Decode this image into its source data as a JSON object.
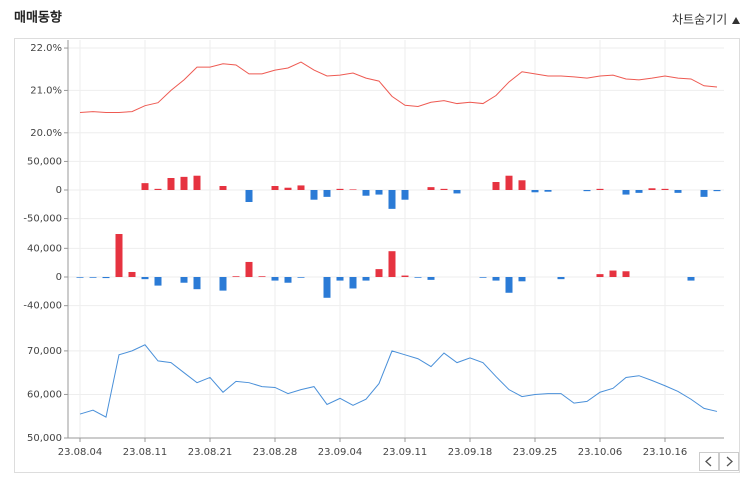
{
  "header": {
    "title": "매매동향",
    "toggle": "차트숨기기"
  },
  "chart_data": [
    {
      "type": "line",
      "color": "#ee5a52",
      "ylim": [
        19.83,
        22.19
      ],
      "yticks": [
        {
          "value": 20.0,
          "label": "20.0%"
        },
        {
          "value": 21.0,
          "label": "21.0%"
        },
        {
          "value": 22.0,
          "label": "22.0%"
        }
      ],
      "grid": true,
      "values": [
        20.48,
        20.5,
        20.48,
        20.48,
        20.5,
        20.64,
        20.71,
        21.0,
        21.25,
        21.55,
        21.55,
        21.63,
        21.6,
        21.39,
        21.39,
        21.48,
        21.53,
        21.67,
        21.48,
        21.34,
        21.36,
        21.41,
        21.29,
        21.22,
        20.86,
        20.65,
        20.62,
        20.72,
        20.76,
        20.69,
        20.72,
        20.69,
        20.88,
        21.2,
        21.44,
        21.39,
        21.34,
        21.34,
        21.32,
        21.29,
        21.34,
        21.36,
        21.27,
        21.25,
        21.29,
        21.34,
        21.29,
        21.27,
        21.11,
        21.08
      ]
    },
    {
      "type": "bar",
      "positive_color": "#e63340",
      "negative_color": "#2b7bd6",
      "ylim": [
        -70000,
        70000
      ],
      "yticks": [
        {
          "value": -50000,
          "label": "-50,000"
        },
        0,
        {
          "value": 50000,
          "label": "50,000"
        }
      ],
      "grid": true,
      "values": [
        0,
        0,
        0,
        0,
        0,
        12000,
        2000,
        21000,
        23000,
        25000,
        0,
        7000,
        0,
        -21000,
        0,
        7000,
        4000,
        8000,
        -17000,
        -12000,
        2000,
        1000,
        -10000,
        -8000,
        -33000,
        -17000,
        0,
        5000,
        2000,
        -6000,
        0,
        0,
        14000,
        25000,
        17000,
        -4000,
        -3000,
        0,
        0,
        -2000,
        2000,
        0,
        -8000,
        -5000,
        3000,
        2000,
        -5000,
        0,
        -12000,
        -2000
      ]
    },
    {
      "type": "bar",
      "positive_color": "#e63340",
      "negative_color": "#2b7bd6",
      "ylim": [
        -60000,
        60000
      ],
      "yticks": [
        {
          "value": -40000,
          "label": "-40,000"
        },
        0,
        {
          "value": 40000,
          "label": "40,000"
        }
      ],
      "grid": true,
      "values": [
        -1000,
        -1000,
        -1500,
        60000,
        7000,
        -3000,
        -12000,
        0,
        -8000,
        -17000,
        0,
        -19000,
        1000,
        21000,
        1000,
        -5000,
        -8000,
        -1000,
        0,
        -29000,
        -5000,
        -16000,
        -5000,
        11000,
        36000,
        2000,
        -1000,
        -4000,
        0,
        0,
        0,
        -1000,
        -5000,
        -22000,
        -6000,
        0,
        0,
        -3000,
        0,
        0,
        4000,
        9000,
        8000,
        0,
        0,
        0,
        0,
        -5000,
        0,
        0
      ]
    },
    {
      "type": "line",
      "color": "#4a90d9",
      "ylim": [
        50000,
        72500
      ],
      "yticks": [
        {
          "value": 50000,
          "label": "50,000"
        },
        {
          "value": 60000,
          "label": "60,000"
        },
        {
          "value": 70000,
          "label": "70,000"
        }
      ],
      "grid": true,
      "categories": [
        "23.08.04",
        null,
        null,
        null,
        null,
        "23.08.11",
        null,
        null,
        null,
        null,
        "23.08.21",
        null,
        null,
        null,
        null,
        "23.08.28",
        null,
        null,
        null,
        null,
        "23.09.04",
        null,
        null,
        null,
        null,
        "23.09.11",
        null,
        null,
        null,
        null,
        "23.09.18",
        null,
        null,
        null,
        null,
        "23.09.25",
        null,
        null,
        null,
        null,
        "23.10.06",
        null,
        null,
        null,
        null,
        "23.10.16",
        null,
        null,
        null,
        null
      ],
      "values": [
        55500,
        56400,
        54800,
        69100,
        70000,
        71400,
        67700,
        67300,
        65000,
        62700,
        63900,
        60500,
        63000,
        62700,
        61800,
        61600,
        60200,
        61100,
        61800,
        57700,
        59100,
        57500,
        58900,
        62500,
        70000,
        69100,
        68200,
        66400,
        69500,
        67300,
        68400,
        67300,
        64100,
        61100,
        59500,
        60000,
        60200,
        60200,
        58000,
        58400,
        60500,
        61400,
        63900,
        64300,
        63200,
        62000,
        60700,
        58900,
        56800,
        56100
      ]
    }
  ]
}
